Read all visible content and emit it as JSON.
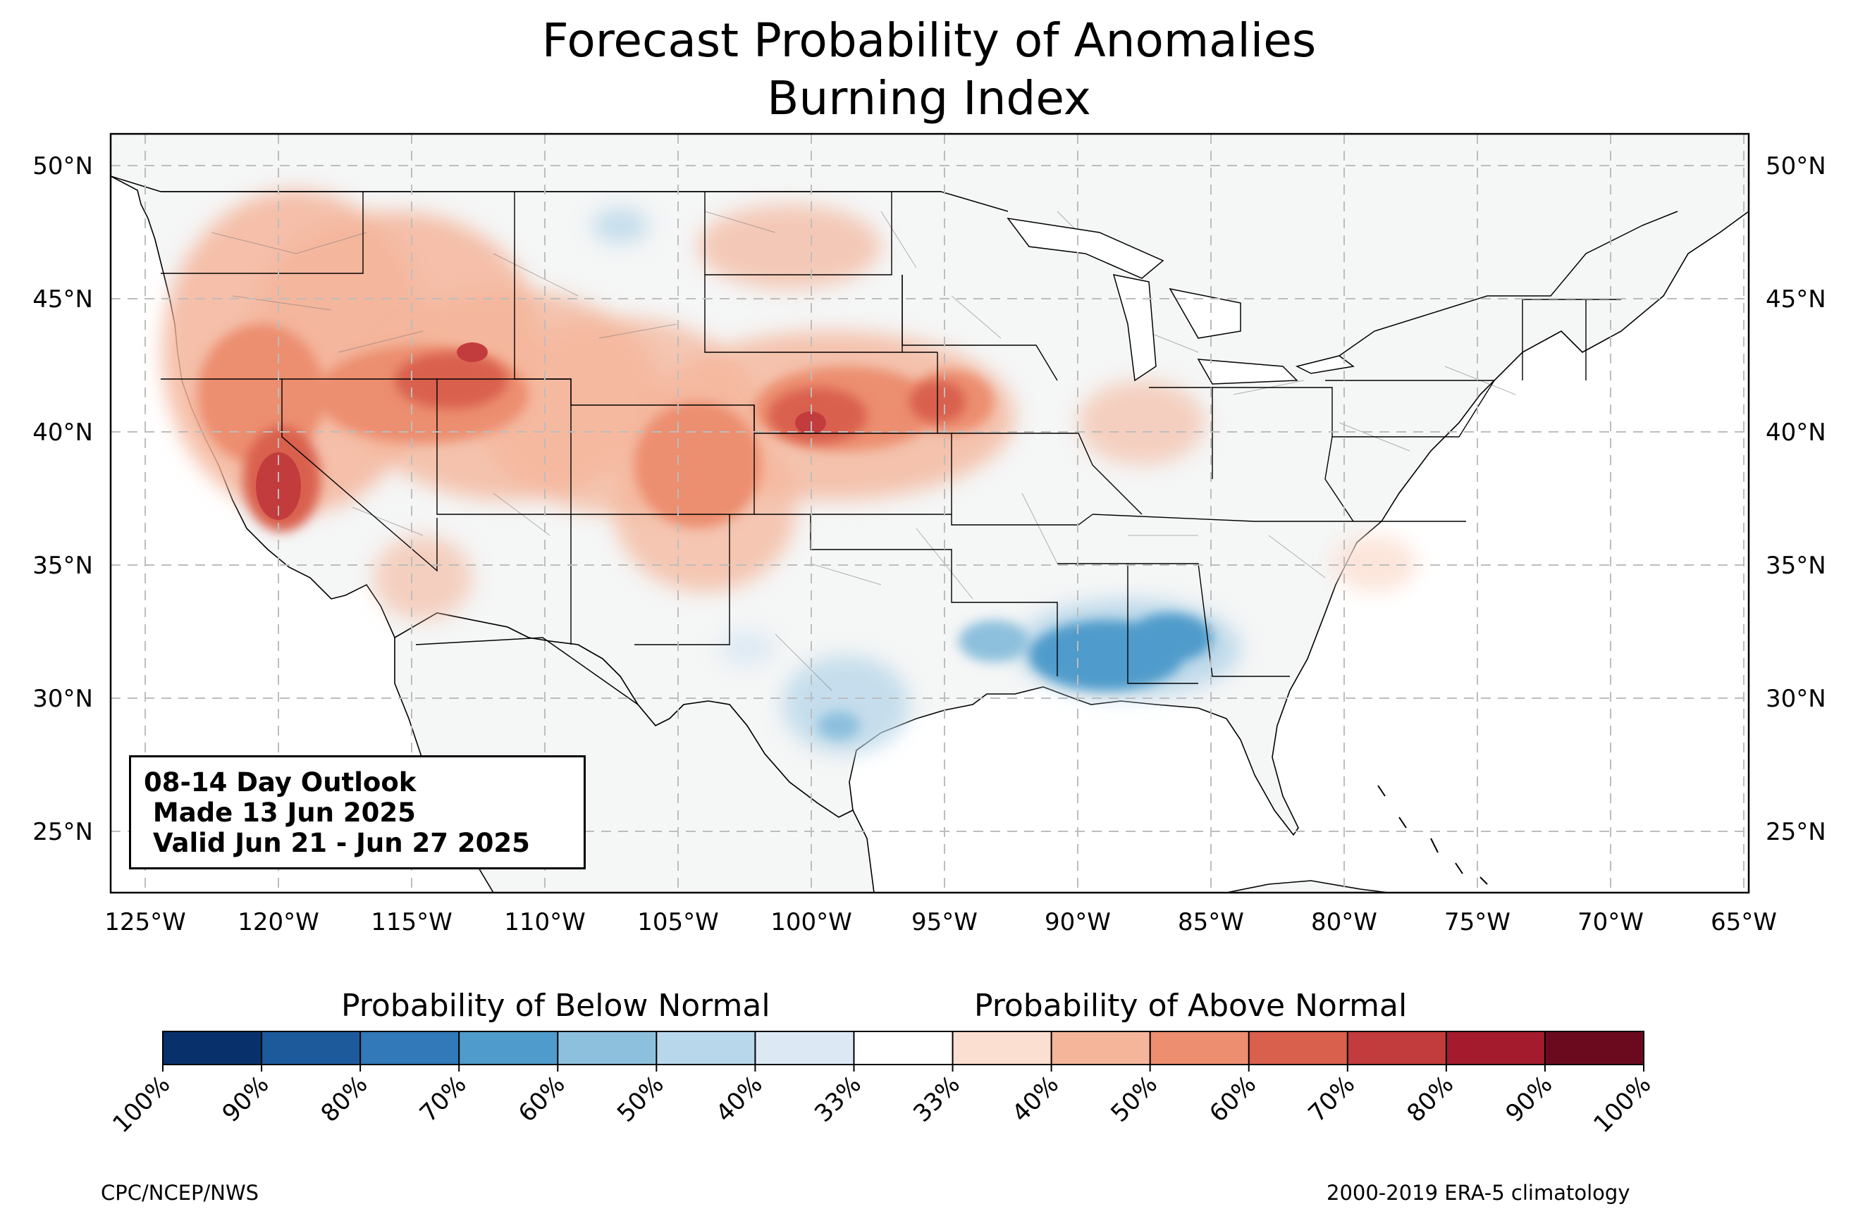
{
  "title": "Forecast Probability of Anomalies",
  "subtitle": "Burning Index",
  "info_box": {
    "line1": "08-14 Day Outlook",
    "line2": " Made 13 Jun 2025",
    "line3": " Valid Jun 21 - Jun 27 2025"
  },
  "colorbar": {
    "below_title": "Probability of Below Normal",
    "above_title": "Probability of Above Normal",
    "tick_labels": [
      "100%",
      "90%",
      "80%",
      "70%",
      "60%",
      "50%",
      "40%",
      "33%",
      "33%",
      "40%",
      "50%",
      "60%",
      "70%",
      "80%",
      "90%",
      "100%"
    ],
    "colors": [
      "#08306b",
      "#1c5a9c",
      "#3179b8",
      "#4f9bcb",
      "#8dc0dd",
      "#b9d7ea",
      "#dce9f4",
      "#ffffff",
      "#fbdfd1",
      "#f4b59b",
      "#ec8e6f",
      "#d9604d",
      "#c33c3d",
      "#a31b2c",
      "#6b0a1f"
    ]
  },
  "axes": {
    "lon_labels": [
      "125°W",
      "120°W",
      "115°W",
      "110°W",
      "105°W",
      "100°W",
      "95°W",
      "90°W",
      "85°W",
      "80°W",
      "75°W",
      "70°W",
      "65°W"
    ],
    "lat_labels": [
      "50°N",
      "45°N",
      "40°N",
      "35°N",
      "30°N",
      "25°N"
    ],
    "lon_range": [
      -126.3,
      -64.9
    ],
    "lat_range": [
      22.7,
      51.2
    ]
  },
  "anomaly_regions": [
    {
      "category": "above",
      "level": "40-50%",
      "area": "Pacific Northwest and Great Basin",
      "center": [
        -117.5,
        42.5
      ]
    },
    {
      "category": "above",
      "level": "70-80%",
      "area": "Central California",
      "center": [
        -119.5,
        37.8
      ]
    },
    {
      "category": "above",
      "level": "70-80%",
      "area": "Southern Idaho",
      "center": [
        -113.2,
        43.0
      ]
    },
    {
      "category": "above",
      "level": "50-60%",
      "area": "Colorado and Kansas",
      "center": [
        -102.0,
        38.8
      ]
    },
    {
      "category": "above",
      "level": "70-80%",
      "area": "Southern Nebraska",
      "center": [
        -99.5,
        40.3
      ]
    },
    {
      "category": "above",
      "level": "60-70%",
      "area": "Northwest Missouri",
      "center": [
        -94.8,
        41.0
      ]
    },
    {
      "category": "below",
      "level": "60-70%",
      "area": "Mississippi and Alabama",
      "center": [
        -88.5,
        32.0
      ]
    },
    {
      "category": "below",
      "level": "40-50%",
      "area": "South Texas",
      "center": [
        -99.0,
        28.5
      ]
    }
  ],
  "footer": {
    "left": "CPC/NCEP/NWS",
    "right": "2000-2019 ERA-5 climatology"
  }
}
